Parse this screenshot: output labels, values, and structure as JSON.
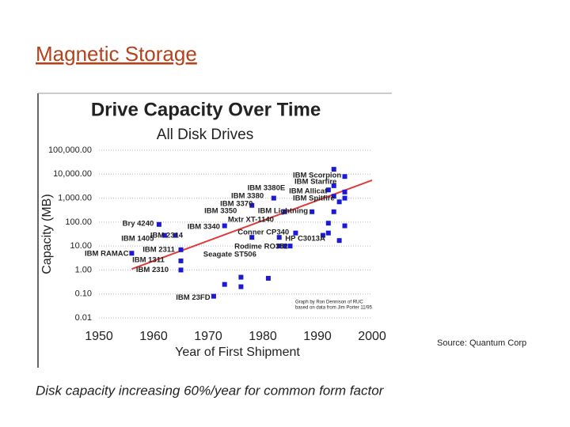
{
  "slide_title": "Magnetic Storage",
  "source": "Source: Quantum Corp",
  "caption": "Disk capacity increasing 60%/year for common form factor",
  "chart_data": {
    "type": "scatter",
    "title": "Drive Capacity Over Time",
    "subtitle": "All Disk Drives",
    "x_label": "Year of First Shipment",
    "y_label": "Capacity (MB)",
    "credit": [
      "Graph by Ron Dennison of RUC",
      "based on data from Jim Porter 11/95"
    ],
    "x": [
      1956,
      1961,
      1962,
      1964,
      1965,
      1965,
      1965,
      1971,
      1973,
      1973,
      1976,
      1976,
      1978,
      1978,
      1981,
      1982,
      1983,
      1983,
      1984,
      1985,
      1986,
      1984,
      1989,
      1991,
      1992,
      1992,
      1992,
      1993,
      1993,
      1993,
      1994,
      1995,
      1995,
      1995,
      1994,
      1995,
      1993
    ],
    "values": [
      5,
      80,
      28,
      28,
      7,
      2.4,
      1,
      0.08,
      70,
      0.25,
      0.5,
      0.2,
      23,
      500,
      0.45,
      1000,
      23,
      10,
      10,
      10,
      35,
      270,
      270,
      28,
      90,
      35,
      2200,
      1200,
      3300,
      16000,
      700,
      1800,
      8000,
      70,
      17,
      1000,
      270
    ],
    "color": "#1a1ad6",
    "trend": {
      "x": [
        1956,
        2000
      ],
      "values": [
        1.1,
        5600
      ],
      "color": "#e03a3a"
    },
    "annotations": [
      {
        "text": "IBM Scorpion",
        "x": 1985.5,
        "y": 8700
      },
      {
        "text": "IBM Starfire",
        "x": 1985.8,
        "y": 4800
      },
      {
        "text": "IBM 3380E",
        "x": 1977.2,
        "y": 2600
      },
      {
        "text": "IBM Allicat",
        "x": 1984.8,
        "y": 1900
      },
      {
        "text": "IBM 3380",
        "x": 1974.2,
        "y": 1200
      },
      {
        "text": "IBM Spitfire",
        "x": 1985.5,
        "y": 970
      },
      {
        "text": "IBM 3370",
        "x": 1972.2,
        "y": 570
      },
      {
        "text": "IBM 3350",
        "x": 1969.3,
        "y": 290
      },
      {
        "text": "IBM Lightning",
        "x": 1979.1,
        "y": 290
      },
      {
        "text": "Mxtr XT-1140",
        "x": 1973.6,
        "y": 125
      },
      {
        "text": "Bry 4240",
        "x": 1954.3,
        "y": 85
      },
      {
        "text": "IBM 3340",
        "x": 1966.2,
        "y": 63
      },
      {
        "text": "Conner CP340",
        "x": 1975.4,
        "y": 37
      },
      {
        "text": "IBM 2314",
        "x": 1959.4,
        "y": 27
      },
      {
        "text": "HP C3013A",
        "x": 1984.1,
        "y": 20
      },
      {
        "text": "IBM 1405",
        "x": 1954.1,
        "y": 20
      },
      {
        "text": "Rodime RO352",
        "x": 1974.8,
        "y": 9.5
      },
      {
        "text": "IBM 2311",
        "x": 1958,
        "y": 7
      },
      {
        "text": "IBM RAMAC",
        "x": 1947.4,
        "y": 4.7
      },
      {
        "text": "Seagate ST506",
        "x": 1969.1,
        "y": 4.4
      },
      {
        "text": "IBM 1311",
        "x": 1956.1,
        "y": 2.6
      },
      {
        "text": "IBM 2310",
        "x": 1956.8,
        "y": 1
      },
      {
        "text": "IBM 23FD",
        "x": 1964.1,
        "y": 0.07
      }
    ],
    "xlim": [
      1950,
      2000
    ],
    "xticks": [
      1950,
      1960,
      1970,
      1980,
      1990,
      2000
    ],
    "ylim": [
      0.01,
      100000
    ],
    "yticks": [
      {
        "value": 100000,
        "label": "100,000.00"
      },
      {
        "value": 10000,
        "label": "10,000.00"
      },
      {
        "value": 1000,
        "label": "1,000.00"
      },
      {
        "value": 100,
        "label": "100.00"
      },
      {
        "value": 10,
        "label": "10.00"
      },
      {
        "value": 1,
        "label": "1.00"
      },
      {
        "value": 0.1,
        "label": "0.10"
      },
      0.01
    ],
    "log_y": true,
    "grid": true
  }
}
